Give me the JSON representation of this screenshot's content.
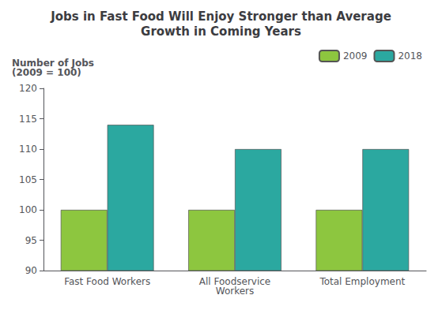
{
  "chart_data": {
    "type": "bar",
    "title": "Jobs in Fast Food Will Enjoy Stronger than Average\nGrowth in Coming Years",
    "ylabel": "Number of Jobs\n(2009 = 100)",
    "categories": [
      "Fast Food Workers",
      "All Foodservice\nWorkers",
      "Total Employment"
    ],
    "series": [
      {
        "name": "2009",
        "color": "#8DC63F",
        "values": [
          100,
          100,
          100
        ]
      },
      {
        "name": "2018",
        "color": "#2BA8A0",
        "values": [
          114,
          110,
          110
        ]
      }
    ],
    "ylim": [
      90,
      120
    ],
    "yticks": [
      90,
      95,
      100,
      105,
      110,
      115,
      120
    ],
    "grid": false,
    "legend": "upper right"
  }
}
